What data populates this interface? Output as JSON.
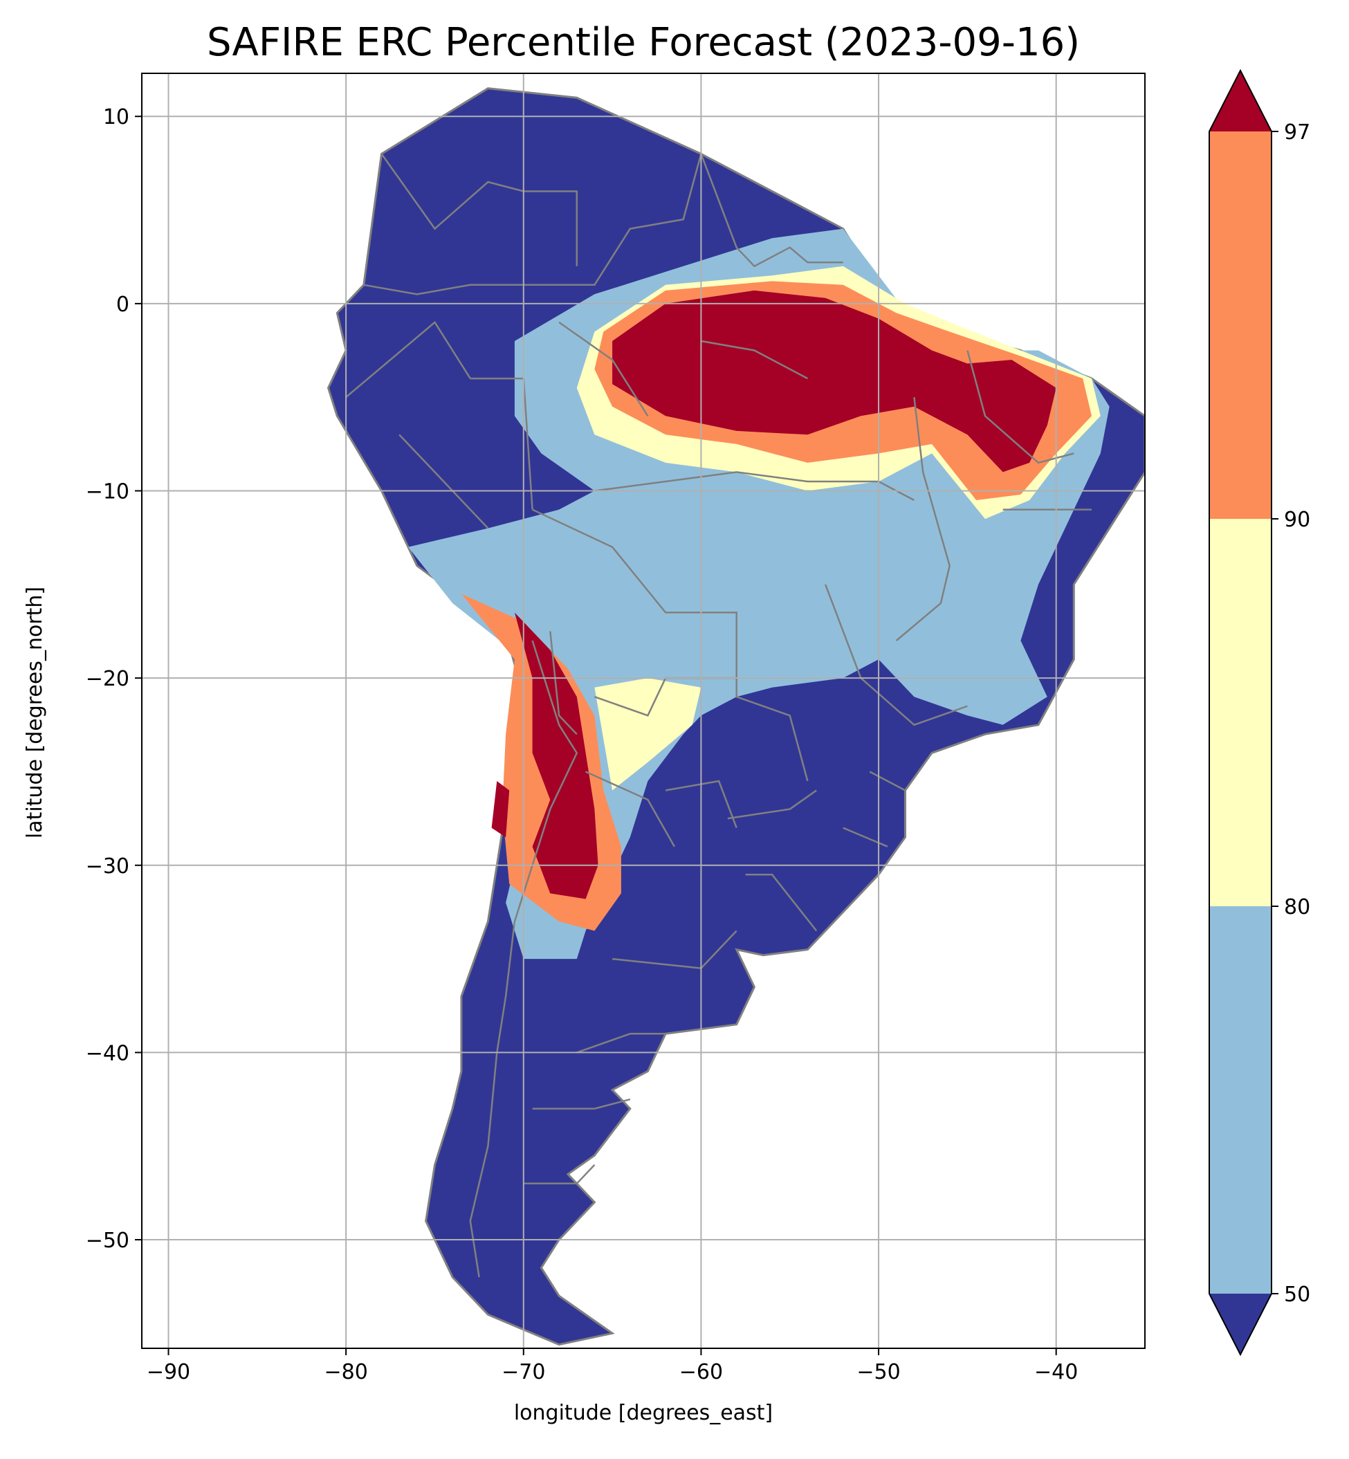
{
  "title": "SAFIRE ERC Percentile Forecast (2023-09-16)",
  "xlabel": "longitude [degrees_east]",
  "ylabel": "latitude [degrees_north]",
  "xlim": [
    -91.5,
    -35
  ],
  "ylim": [
    -55.8,
    12.3
  ],
  "xticks": [
    -90,
    -80,
    -70,
    -60,
    -50,
    -40
  ],
  "yticks": [
    10,
    0,
    -10,
    -20,
    -30,
    -40,
    -50
  ],
  "grid": true,
  "colors": {
    "below_50": "#313695",
    "c50_80": "#91bfdb",
    "c80_90": "#ffffbf",
    "c90_97": "#fc8d59",
    "above_97": "#a50026",
    "border": "#808080",
    "grid": "#b0b0b0"
  },
  "colorbar": {
    "ticks": [
      50,
      80,
      90,
      97
    ],
    "extend": "both"
  },
  "chart_data": {
    "type": "heatmap",
    "title": "SAFIRE ERC Percentile Forecast (2023-09-16)",
    "xlabel": "longitude [degrees_east]",
    "ylabel": "latitude [degrees_north]",
    "xlim": [
      -91.5,
      -35
    ],
    "ylim": [
      -55.8,
      12.3
    ],
    "grid": true,
    "colorbar_levels": [
      50,
      80,
      90,
      97
    ],
    "regions": [
      {
        "class": "below_50",
        "lonlat": [
          [
            -79,
            1
          ],
          [
            -78,
            8
          ],
          [
            -72,
            11.5
          ],
          [
            -67,
            11
          ],
          [
            -60,
            8
          ],
          [
            -55,
            5.5
          ],
          [
            -52,
            4
          ],
          [
            -50,
            1
          ],
          [
            -48,
            -1
          ],
          [
            -42,
            -2.5
          ],
          [
            -38,
            -4
          ],
          [
            -35,
            -6
          ],
          [
            -35,
            -9
          ],
          [
            -37,
            -12
          ],
          [
            -39,
            -15
          ],
          [
            -39,
            -19
          ],
          [
            -41,
            -22.5
          ],
          [
            -44,
            -23
          ],
          [
            -47,
            -24
          ],
          [
            -48.5,
            -26
          ],
          [
            -48.5,
            -28.5
          ],
          [
            -50,
            -30.5
          ],
          [
            -52,
            -32.5
          ],
          [
            -54,
            -34.5
          ],
          [
            -56.5,
            -34.8
          ],
          [
            -58,
            -34.5
          ],
          [
            -57,
            -36.5
          ],
          [
            -58,
            -38.5
          ],
          [
            -62,
            -39
          ],
          [
            -63,
            -41
          ],
          [
            -65,
            -42
          ],
          [
            -64,
            -43
          ],
          [
            -66,
            -45.5
          ],
          [
            -67.5,
            -46.5
          ],
          [
            -66,
            -48
          ],
          [
            -68,
            -50
          ],
          [
            -69,
            -51.5
          ],
          [
            -68,
            -53
          ],
          [
            -65,
            -55
          ],
          [
            -68,
            -55.6
          ],
          [
            -72,
            -54
          ],
          [
            -74,
            -52
          ],
          [
            -75.5,
            -49
          ],
          [
            -75,
            -46
          ],
          [
            -74,
            -43
          ],
          [
            -73.5,
            -41
          ],
          [
            -73.5,
            -37
          ],
          [
            -72,
            -33
          ],
          [
            -71.5,
            -30
          ],
          [
            -71,
            -27
          ],
          [
            -70.5,
            -24
          ],
          [
            -70.3,
            -20
          ],
          [
            -71,
            -17.5
          ],
          [
            -76,
            -14
          ],
          [
            -78,
            -10
          ],
          [
            -80.5,
            -6
          ],
          [
            -81,
            -4.5
          ],
          [
            -80,
            -2.5
          ],
          [
            -80.5,
            -0.5
          ]
        ]
      },
      {
        "class": "c50_80",
        "lonlat": [
          [
            -70.5,
            -2
          ],
          [
            -66,
            0.5
          ],
          [
            -61,
            2
          ],
          [
            -56,
            3.5
          ],
          [
            -52,
            4
          ],
          [
            -50,
            1.5
          ],
          [
            -48,
            -1
          ],
          [
            -44,
            -2.5
          ],
          [
            -41,
            -2.5
          ],
          [
            -38,
            -4
          ],
          [
            -37,
            -5.5
          ],
          [
            -37.5,
            -8
          ],
          [
            -39,
            -11
          ],
          [
            -40,
            -13
          ],
          [
            -41,
            -15
          ],
          [
            -42,
            -18
          ],
          [
            -40.5,
            -21
          ],
          [
            -43,
            -22.5
          ],
          [
            -45,
            -22
          ],
          [
            -48,
            -21
          ],
          [
            -50,
            -19
          ],
          [
            -52,
            -20
          ],
          [
            -56,
            -20.5
          ],
          [
            -58,
            -21
          ],
          [
            -60,
            -22
          ],
          [
            -61,
            -23
          ],
          [
            -63,
            -25.5
          ],
          [
            -64,
            -28.5
          ],
          [
            -65,
            -30.5
          ],
          [
            -66.5,
            -33.5
          ],
          [
            -67,
            -35
          ],
          [
            -70,
            -35
          ],
          [
            -71,
            -32
          ],
          [
            -70,
            -28
          ],
          [
            -69,
            -23.5
          ],
          [
            -70,
            -19
          ],
          [
            -74,
            -16
          ],
          [
            -76.5,
            -13
          ],
          [
            -72,
            -12
          ],
          [
            -68,
            -11
          ],
          [
            -66,
            -10
          ],
          [
            -69,
            -8
          ],
          [
            -70.5,
            -6
          ]
        ]
      },
      {
        "class": "c80_90",
        "lonlat": [
          [
            -66,
            -1.5
          ],
          [
            -62,
            1
          ],
          [
            -56,
            1.5
          ],
          [
            -52,
            2
          ],
          [
            -48.5,
            0
          ],
          [
            -46,
            -1
          ],
          [
            -42,
            -2.5
          ],
          [
            -38,
            -4
          ],
          [
            -37.5,
            -6
          ],
          [
            -39.5,
            -8
          ],
          [
            -41.5,
            -10.5
          ],
          [
            -44,
            -11.5
          ],
          [
            -47,
            -8
          ],
          [
            -50,
            -9.5
          ],
          [
            -54,
            -10
          ],
          [
            -58,
            -9
          ],
          [
            -62,
            -8.5
          ],
          [
            -66,
            -7
          ],
          [
            -67,
            -4.5
          ]
        ]
      },
      {
        "class": "c90_97",
        "lonlat": [
          [
            -65.5,
            -1.5
          ],
          [
            -62,
            0.7
          ],
          [
            -56,
            1.2
          ],
          [
            -52,
            1
          ],
          [
            -49,
            -0.5
          ],
          [
            -46,
            -1.5
          ],
          [
            -42,
            -2.8
          ],
          [
            -38.5,
            -4
          ],
          [
            -38,
            -6
          ],
          [
            -40,
            -8
          ],
          [
            -42,
            -10.2
          ],
          [
            -44.5,
            -10.5
          ],
          [
            -47,
            -7.5
          ],
          [
            -50,
            -8
          ],
          [
            -54,
            -8.5
          ],
          [
            -58,
            -7.5
          ],
          [
            -62,
            -7
          ],
          [
            -65,
            -5.5
          ],
          [
            -66,
            -3.5
          ]
        ]
      },
      {
        "class": "above_97",
        "lonlat": [
          [
            -65,
            -2
          ],
          [
            -62,
            0
          ],
          [
            -57,
            0.7
          ],
          [
            -53,
            0.3
          ],
          [
            -50,
            -0.8
          ],
          [
            -47,
            -2.5
          ],
          [
            -45,
            -3.2
          ],
          [
            -42.5,
            -3
          ],
          [
            -40,
            -4.5
          ],
          [
            -40.5,
            -6.5
          ],
          [
            -41.5,
            -8.5
          ],
          [
            -43,
            -9
          ],
          [
            -45,
            -7
          ],
          [
            -48,
            -5.5
          ],
          [
            -51,
            -6
          ],
          [
            -54,
            -7
          ],
          [
            -58,
            -6.8
          ],
          [
            -62,
            -6
          ],
          [
            -65,
            -4.3
          ]
        ]
      },
      {
        "class": "c90_97",
        "lonlat": [
          [
            -73.5,
            -15.5
          ],
          [
            -70,
            -17
          ],
          [
            -67.5,
            -19.5
          ],
          [
            -66,
            -22
          ],
          [
            -65.5,
            -26
          ],
          [
            -64.5,
            -29
          ],
          [
            -64.5,
            -31.5
          ],
          [
            -66,
            -33.5
          ],
          [
            -68,
            -33
          ],
          [
            -70.8,
            -31
          ],
          [
            -71.2,
            -27
          ],
          [
            -71,
            -23
          ],
          [
            -70.5,
            -19
          ]
        ]
      },
      {
        "class": "c80_90",
        "lonlat": [
          [
            -66,
            -20.5
          ],
          [
            -63,
            -20
          ],
          [
            -60,
            -20.5
          ],
          [
            -60.5,
            -22.5
          ],
          [
            -63,
            -24.5
          ],
          [
            -65,
            -26
          ]
        ]
      },
      {
        "class": "above_97",
        "lonlat": [
          [
            -70.5,
            -16.5
          ],
          [
            -68.5,
            -18.5
          ],
          [
            -67,
            -21
          ],
          [
            -66.5,
            -24
          ],
          [
            -66,
            -27
          ],
          [
            -65.8,
            -30
          ],
          [
            -66.5,
            -31.8
          ],
          [
            -68.5,
            -31.5
          ],
          [
            -69.5,
            -29
          ],
          [
            -68.5,
            -26.5
          ],
          [
            -69.5,
            -24
          ],
          [
            -69.5,
            -20
          ]
        ]
      },
      {
        "class": "above_97",
        "lonlat": [
          [
            -71.5,
            -25.5
          ],
          [
            -70.8,
            -26
          ],
          [
            -71,
            -28.5
          ],
          [
            -71.8,
            -28
          ]
        ]
      }
    ],
    "borders": [
      [
        [
          -66,
          -10
        ],
        [
          -62,
          -9.5
        ],
        [
          -58,
          -9
        ],
        [
          -54,
          -9.5
        ],
        [
          -50,
          -9.5
        ],
        [
          -48,
          -10.5
        ]
      ],
      [
        [
          -69.5,
          -11
        ],
        [
          -65,
          -13
        ],
        [
          -62,
          -16.5
        ],
        [
          -58,
          -16.5
        ],
        [
          -58,
          -21
        ],
        [
          -55,
          -22
        ],
        [
          -54,
          -25.5
        ]
      ],
      [
        [
          -73,
          -4
        ],
        [
          -70,
          -4
        ],
        [
          -69.5,
          -11
        ]
      ],
      [
        [
          -69,
          1
        ],
        [
          -66,
          1
        ],
        [
          -64,
          4
        ],
        [
          -61,
          4.5
        ],
        [
          -60,
          8
        ]
      ],
      [
        [
          -66,
          -21
        ],
        [
          -63,
          -22
        ],
        [
          -62,
          -20
        ],
        [
          -58,
          -20
        ]
      ],
      [
        [
          -68.5,
          -17.5
        ],
        [
          -68,
          -22
        ],
        [
          -67,
          -23
        ]
      ],
      [
        [
          -69.5,
          -18
        ],
        [
          -68,
          -22.5
        ],
        [
          -67,
          -24
        ],
        [
          -68.5,
          -27
        ],
        [
          -69.5,
          -30
        ],
        [
          -70.5,
          -33
        ],
        [
          -71,
          -37
        ],
        [
          -71.5,
          -40
        ],
        [
          -72,
          -45
        ],
        [
          -73,
          -49
        ],
        [
          -72.5,
          -52
        ]
      ],
      [
        [
          -58.5,
          -27.5
        ],
        [
          -55,
          -27
        ],
        [
          -53.5,
          -26
        ]
      ],
      [
        [
          -57.5,
          -30.5
        ],
        [
          -56,
          -30.5
        ],
        [
          -53.5,
          -33.5
        ]
      ],
      [
        [
          -80,
          -5
        ],
        [
          -75,
          -1
        ],
        [
          -73,
          -4
        ]
      ],
      [
        [
          -79,
          1
        ],
        [
          -76,
          0.5
        ],
        [
          -73,
          1
        ],
        [
          -69,
          1
        ]
      ],
      [
        [
          -78,
          8
        ],
        [
          -75,
          4
        ],
        [
          -72,
          6.5
        ],
        [
          -70,
          6
        ],
        [
          -67,
          6
        ],
        [
          -67,
          2
        ]
      ],
      [
        [
          -60,
          8
        ],
        [
          -58,
          3
        ],
        [
          -57,
          2
        ],
        [
          -55,
          3
        ],
        [
          -54,
          2.2
        ],
        [
          -52,
          2.2
        ]
      ],
      [
        [
          -72,
          -12
        ],
        [
          -75,
          -9
        ],
        [
          -77,
          -7
        ]
      ],
      [
        [
          -65,
          -35
        ],
        [
          -60,
          -35.5
        ],
        [
          -58,
          -33.5
        ]
      ],
      [
        [
          -45,
          -2.5
        ],
        [
          -44,
          -6
        ],
        [
          -41,
          -8.5
        ],
        [
          -39,
          -8
        ]
      ],
      [
        [
          -48,
          -5
        ],
        [
          -47.5,
          -9
        ],
        [
          -46,
          -14
        ],
        [
          -46.5,
          -16
        ],
        [
          -49,
          -18
        ]
      ],
      [
        [
          -53,
          -15
        ],
        [
          -51,
          -20
        ],
        [
          -48,
          -22.5
        ],
        [
          -45,
          -21.5
        ]
      ],
      [
        [
          -43,
          -11
        ],
        [
          -40.5,
          -11
        ],
        [
          -38,
          -11
        ]
      ],
      [
        [
          -50.5,
          -25
        ],
        [
          -48.5,
          -26
        ]
      ],
      [
        [
          -52,
          -28
        ],
        [
          -49.5,
          -29
        ]
      ],
      [
        [
          -62,
          -26
        ],
        [
          -59,
          -25.5
        ],
        [
          -58,
          -28
        ]
      ],
      [
        [
          -67,
          -40
        ],
        [
          -64,
          -39
        ],
        [
          -62,
          -39
        ]
      ],
      [
        [
          -69.5,
          -43
        ],
        [
          -66,
          -43
        ],
        [
          -64,
          -42.5
        ]
      ],
      [
        [
          -70,
          -47
        ],
        [
          -67,
          -47
        ],
        [
          -66,
          -46
        ]
      ],
      [
        [
          -66.5,
          -25
        ],
        [
          -63,
          -26.5
        ],
        [
          -61.5,
          -29
        ]
      ],
      [
        [
          -60,
          -2
        ],
        [
          -57,
          -2.5
        ],
        [
          -54,
          -4
        ]
      ],
      [
        [
          -68,
          -1
        ],
        [
          -65,
          -3
        ],
        [
          -63,
          -6
        ]
      ]
    ]
  }
}
